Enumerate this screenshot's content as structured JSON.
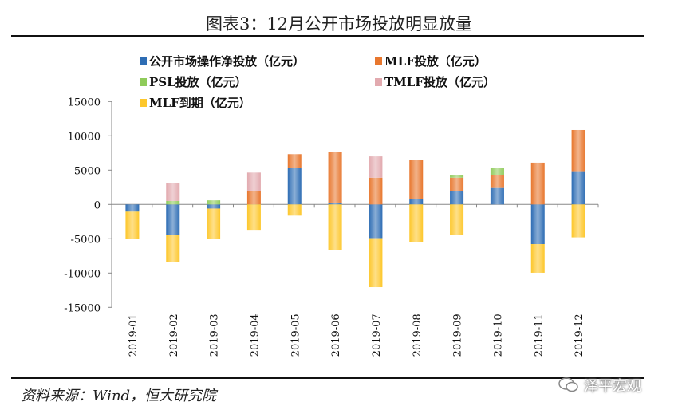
{
  "title": "图表3：12月公开市场投放明显放量",
  "source": "资料来源：Wind，恒大研究院",
  "watermark": "泽平宏观",
  "chart_data": {
    "type": "bar",
    "stacked": true,
    "categories": [
      "2019-01",
      "2019-02",
      "2019-03",
      "2019-04",
      "2019-05",
      "2019-06",
      "2019-07",
      "2019-08",
      "2019-09",
      "2019-10",
      "2019-11",
      "2019-12"
    ],
    "ylim": [
      -15000,
      15000
    ],
    "yticks": [
      -15000,
      -10000,
      -5000,
      0,
      5000,
      10000,
      15000
    ],
    "grid": false,
    "legend": "top",
    "series": [
      {
        "name": "公开市场操作净投放（亿元）",
        "color": "#2E6DB4",
        "values": [
          -1050,
          -4400,
          -600,
          0,
          5270,
          270,
          -4920,
          740,
          1940,
          2400,
          -5780,
          4850
        ]
      },
      {
        "name": "MLF投放（亿元）",
        "color": "#E8772E",
        "values": [
          0,
          0,
          0,
          1900,
          2060,
          7400,
          3900,
          5700,
          1960,
          1900,
          6090,
          6000
        ]
      },
      {
        "name": "PSL投放（亿元）",
        "color": "#8FCB5A",
        "values": [
          0,
          500,
          600,
          0,
          0,
          0,
          0,
          0,
          330,
          970,
          0,
          0
        ]
      },
      {
        "name": "TMLF投放（亿元）",
        "color": "#E2AAAF",
        "values": [
          0,
          2650,
          0,
          2750,
          0,
          0,
          3100,
          0,
          0,
          0,
          0,
          0
        ]
      },
      {
        "name": "MLF到期（亿元）",
        "color": "#FDC72B",
        "values": [
          -4030,
          -3970,
          -4400,
          -3700,
          -1630,
          -6700,
          -7140,
          -5430,
          -4500,
          0,
          -4180,
          -4800
        ]
      }
    ]
  }
}
